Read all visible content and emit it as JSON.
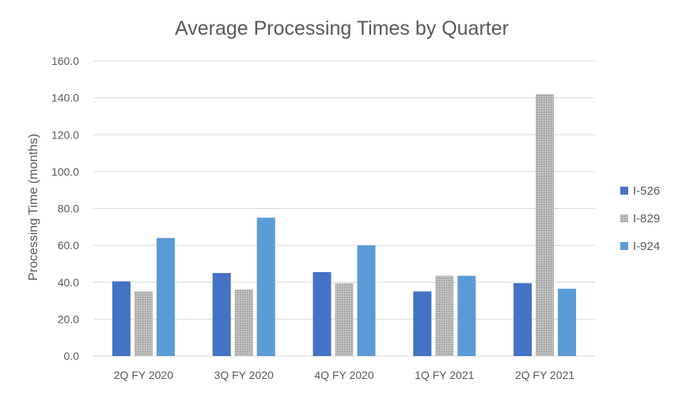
{
  "chart_data": {
    "type": "bar",
    "title": "Average Processing Times by Quarter",
    "xlabel": "",
    "ylabel": "Processing Time (months)",
    "ylim": [
      0,
      160
    ],
    "y_ticks": [
      "0.0",
      "20.0",
      "40.0",
      "60.0",
      "80.0",
      "100.0",
      "120.0",
      "140.0",
      "160.0"
    ],
    "grid": true,
    "legend_position": "right",
    "categories": [
      "2Q FY 2020",
      "3Q FY 2020",
      "4Q FY 2020",
      "1Q FY 2021",
      "2Q FY 2021"
    ],
    "series": [
      {
        "name": "I-526",
        "color": "#4472c4",
        "pattern": "solid",
        "values": [
          40.5,
          45.0,
          45.5,
          35.0,
          39.5
        ]
      },
      {
        "name": "I-829",
        "color": "#a5a5a5",
        "pattern": "dotted",
        "values": [
          35.0,
          36.0,
          39.5,
          43.5,
          142.0
        ]
      },
      {
        "name": "I-924",
        "color": "#5b9bd5",
        "pattern": "solid",
        "values": [
          64.0,
          75.0,
          60.0,
          43.5,
          36.5
        ]
      }
    ]
  }
}
